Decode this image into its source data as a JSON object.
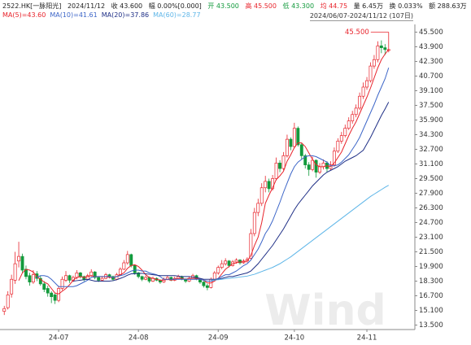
{
  "chart_data": {
    "type": "candlestick",
    "info": [
      "2522.HK[一脉阳光]",
      "2024/11/12",
      "收 43.600",
      "幅 0.00%[0.000]",
      "开 43.500",
      "高 45.500",
      "低 43.300",
      "均 44.75",
      "量 6.45万",
      "换 0.033%",
      "额 288.63万"
    ],
    "range_label": "2024/06/07-2024/11/12 (107日)",
    "annotation": "45.500",
    "watermark": "Wind",
    "up_color": "#e8242c",
    "down_color": "#129a3c",
    "categories": [
      null,
      null,
      null,
      null,
      null,
      null,
      null,
      null,
      null,
      null,
      null,
      null,
      null,
      null,
      null,
      "24-07",
      null,
      null,
      null,
      null,
      null,
      null,
      null,
      null,
      null,
      null,
      null,
      null,
      null,
      null,
      null,
      null,
      null,
      null,
      null,
      null,
      null,
      "24-08",
      null,
      null,
      null,
      null,
      null,
      null,
      null,
      null,
      null,
      null,
      null,
      null,
      null,
      null,
      null,
      null,
      null,
      null,
      null,
      null,
      null,
      "24-09",
      null,
      null,
      null,
      null,
      null,
      null,
      null,
      null,
      null,
      null,
      null,
      null,
      null,
      null,
      null,
      null,
      null,
      null,
      null,
      null,
      "24-10",
      null,
      null,
      null,
      null,
      null,
      null,
      null,
      null,
      null,
      null,
      null,
      null,
      null,
      null,
      null,
      null,
      null,
      null,
      null,
      "24-11",
      null,
      null,
      null,
      null,
      null,
      null
    ],
    "ohlc": [
      [
        15.0,
        15.6,
        14.6,
        15.3
      ],
      [
        15.4,
        17.2,
        15.2,
        16.8
      ],
      [
        16.9,
        19.0,
        16.5,
        18.5
      ],
      [
        18.4,
        21.5,
        18.0,
        20.2
      ],
      [
        20.5,
        22.6,
        19.8,
        21.0
      ],
      [
        21.0,
        21.3,
        19.2,
        19.5
      ],
      [
        19.6,
        20.0,
        18.5,
        18.8
      ],
      [
        18.9,
        19.2,
        17.8,
        18.2
      ],
      [
        18.2,
        19.5,
        18.0,
        19.0
      ],
      [
        19.1,
        19.4,
        18.3,
        18.6
      ],
      [
        18.6,
        18.9,
        17.8,
        18.0
      ],
      [
        18.0,
        18.3,
        17.1,
        17.4
      ],
      [
        17.5,
        17.8,
        16.6,
        17.0
      ],
      [
        17.0,
        17.2,
        15.9,
        16.6
      ],
      [
        16.8,
        17.0,
        15.8,
        16.2
      ],
      [
        16.2,
        17.8,
        16.0,
        17.5
      ],
      [
        17.5,
        18.8,
        17.3,
        18.5
      ],
      [
        18.4,
        19.4,
        18.2,
        18.9
      ],
      [
        18.9,
        19.0,
        18.1,
        18.4
      ],
      [
        18.4,
        18.9,
        18.2,
        18.7
      ],
      [
        18.7,
        19.5,
        18.5,
        19.2
      ],
      [
        19.2,
        19.3,
        18.6,
        18.8
      ],
      [
        18.8,
        18.9,
        18.3,
        18.5
      ],
      [
        18.5,
        19.1,
        18.4,
        18.9
      ],
      [
        18.9,
        19.6,
        18.8,
        19.3
      ],
      [
        19.3,
        19.4,
        18.5,
        18.7
      ],
      [
        18.7,
        18.8,
        18.2,
        18.4
      ],
      [
        18.4,
        18.8,
        18.3,
        18.6
      ],
      [
        18.6,
        19.2,
        18.5,
        19.0
      ],
      [
        19.0,
        19.1,
        18.6,
        18.8
      ],
      [
        18.8,
        18.9,
        18.3,
        18.5
      ],
      [
        18.5,
        19.2,
        18.4,
        19.0
      ],
      [
        19.0,
        19.8,
        18.9,
        19.6
      ],
      [
        19.6,
        20.6,
        19.5,
        20.3
      ],
      [
        20.3,
        21.6,
        20.1,
        21.2
      ],
      [
        21.2,
        21.3,
        19.8,
        20.0
      ],
      [
        20.0,
        20.1,
        19.0,
        19.2
      ],
      [
        19.2,
        19.3,
        18.6,
        18.8
      ],
      [
        18.8,
        18.9,
        18.3,
        18.5
      ],
      [
        18.5,
        18.9,
        18.4,
        18.7
      ],
      [
        18.7,
        18.8,
        18.1,
        18.3
      ],
      [
        18.3,
        18.8,
        18.2,
        18.6
      ],
      [
        18.6,
        18.7,
        18.3,
        18.4
      ],
      [
        18.4,
        18.5,
        18.0,
        18.2
      ],
      [
        18.2,
        18.7,
        18.1,
        18.5
      ],
      [
        18.5,
        18.9,
        18.4,
        18.7
      ],
      [
        18.7,
        18.8,
        18.3,
        18.4
      ],
      [
        18.4,
        18.8,
        18.3,
        18.6
      ],
      [
        18.6,
        19.0,
        18.5,
        18.8
      ],
      [
        18.8,
        18.9,
        18.4,
        18.5
      ],
      [
        18.5,
        18.6,
        18.1,
        18.3
      ],
      [
        18.3,
        18.8,
        18.2,
        18.6
      ],
      [
        18.6,
        19.1,
        18.5,
        18.9
      ],
      [
        18.9,
        19.0,
        18.4,
        18.5
      ],
      [
        18.5,
        18.6,
        18.0,
        18.2
      ],
      [
        18.2,
        18.3,
        17.6,
        17.8
      ],
      [
        17.8,
        18.0,
        17.3,
        17.6
      ],
      [
        17.6,
        18.7,
        17.5,
        18.5
      ],
      [
        18.5,
        19.4,
        18.4,
        19.2
      ],
      [
        19.2,
        20.0,
        19.0,
        19.8
      ],
      [
        19.8,
        20.6,
        19.6,
        20.2
      ],
      [
        20.2,
        20.8,
        20.0,
        20.5
      ],
      [
        20.5,
        20.6,
        19.8,
        20.0
      ],
      [
        20.0,
        20.6,
        19.9,
        20.4
      ],
      [
        20.4,
        20.8,
        20.2,
        20.6
      ],
      [
        20.6,
        20.7,
        20.1,
        20.3
      ],
      [
        20.3,
        20.7,
        20.2,
        20.5
      ],
      [
        20.5,
        20.9,
        20.3,
        20.7
      ],
      [
        20.8,
        24.0,
        20.7,
        23.5
      ],
      [
        23.5,
        26.3,
        23.2,
        25.8
      ],
      [
        25.8,
        27.3,
        25.4,
        26.8
      ],
      [
        26.8,
        29.0,
        26.5,
        28.5
      ],
      [
        28.5,
        29.8,
        28.0,
        29.2
      ],
      [
        29.2,
        29.5,
        28.0,
        28.4
      ],
      [
        28.4,
        29.9,
        28.2,
        29.5
      ],
      [
        29.5,
        31.8,
        29.3,
        31.2
      ],
      [
        31.2,
        31.5,
        30.2,
        30.6
      ],
      [
        30.6,
        32.4,
        30.4,
        32.0
      ],
      [
        32.0,
        34.3,
        31.8,
        33.8
      ],
      [
        33.8,
        34.0,
        32.6,
        33.0
      ],
      [
        33.0,
        35.6,
        32.8,
        35.0
      ],
      [
        35.0,
        35.2,
        33.0,
        33.2
      ],
      [
        33.2,
        33.4,
        31.6,
        32.0
      ],
      [
        32.0,
        32.2,
        30.6,
        31.0
      ],
      [
        31.0,
        31.3,
        29.8,
        30.5
      ],
      [
        30.5,
        31.9,
        30.3,
        31.5
      ],
      [
        31.5,
        31.6,
        29.6,
        30.2
      ],
      [
        30.2,
        31.2,
        30.0,
        30.8
      ],
      [
        30.8,
        31.6,
        30.5,
        31.2
      ],
      [
        31.2,
        31.4,
        30.2,
        30.6
      ],
      [
        30.6,
        31.4,
        30.4,
        31.0
      ],
      [
        31.0,
        32.9,
        30.8,
        32.5
      ],
      [
        32.5,
        33.9,
        32.3,
        33.6
      ],
      [
        33.6,
        34.6,
        33.3,
        34.2
      ],
      [
        34.2,
        35.4,
        34.0,
        35.0
      ],
      [
        35.0,
        36.2,
        34.8,
        35.8
      ],
      [
        35.8,
        36.9,
        35.5,
        36.5
      ],
      [
        36.5,
        37.6,
        36.2,
        37.2
      ],
      [
        37.2,
        38.9,
        37.0,
        38.5
      ],
      [
        38.5,
        40.0,
        38.2,
        39.5
      ],
      [
        39.5,
        40.6,
        39.2,
        40.2
      ],
      [
        40.2,
        42.2,
        40.0,
        41.8
      ],
      [
        41.8,
        43.0,
        41.5,
        42.5
      ],
      [
        42.5,
        44.5,
        42.2,
        44.0
      ],
      [
        44.0,
        44.6,
        43.2,
        43.8
      ],
      [
        43.8,
        44.2,
        43.0,
        43.6
      ],
      [
        43.5,
        45.5,
        43.3,
        43.6
      ]
    ],
    "series": [
      {
        "name": "MA(5)=43.60",
        "color": "#e8242c",
        "values": [
          null,
          null,
          null,
          null,
          18.36,
          19.2,
          19.6,
          19.5,
          19.3,
          18.8,
          18.5,
          18.2,
          18.0,
          17.5,
          17.0,
          16.9,
          17.2,
          17.5,
          17.9,
          18.4,
          18.7,
          18.8,
          18.7,
          18.8,
          18.9,
          18.8,
          18.8,
          18.8,
          18.8,
          18.7,
          18.7,
          18.8,
          19.0,
          19.2,
          19.7,
          20.0,
          20.1,
          19.9,
          19.5,
          19.0,
          18.7,
          18.6,
          18.5,
          18.4,
          18.4,
          18.5,
          18.4,
          18.5,
          18.6,
          18.6,
          18.5,
          18.6,
          18.6,
          18.6,
          18.5,
          18.4,
          18.1,
          18.1,
          18.3,
          18.6,
          19.1,
          19.6,
          19.9,
          20.2,
          20.3,
          20.4,
          20.4,
          20.5,
          21.1,
          22.2,
          23.1,
          24.7,
          26.8,
          27.7,
          28.5,
          29.4,
          29.8,
          30.3,
          31.4,
          32.1,
          32.9,
          33.4,
          33.4,
          33.0,
          32.3,
          31.6,
          31.0,
          30.8,
          30.8,
          30.9,
          30.8,
          31.2,
          31.8,
          32.4,
          33.3,
          34.2,
          35.0,
          35.7,
          36.6,
          37.5,
          38.4,
          39.4,
          40.5,
          41.6,
          42.5,
          43.1,
          43.6
        ]
      },
      {
        "name": "MA(10)=41.61",
        "color": "#3d66c8",
        "values": [
          null,
          null,
          null,
          null,
          null,
          null,
          null,
          null,
          null,
          18.7,
          18.9,
          18.9,
          18.8,
          18.5,
          18.1,
          17.7,
          17.7,
          17.7,
          17.7,
          17.7,
          17.8,
          18.0,
          18.2,
          18.4,
          18.7,
          18.8,
          18.8,
          18.8,
          18.8,
          18.8,
          18.7,
          18.8,
          18.9,
          19.0,
          19.2,
          19.4,
          19.5,
          19.5,
          19.4,
          19.4,
          19.2,
          19.1,
          19.0,
          18.8,
          18.5,
          18.5,
          18.5,
          18.5,
          18.5,
          18.5,
          18.5,
          18.5,
          18.5,
          18.5,
          18.5,
          18.4,
          18.3,
          18.3,
          18.4,
          18.6,
          18.8,
          19.0,
          19.0,
          19.2,
          19.4,
          19.7,
          20.0,
          20.2,
          20.6,
          21.2,
          21.8,
          22.6,
          23.5,
          24.1,
          24.9,
          25.9,
          26.9,
          28.0,
          29.0,
          30.0,
          30.8,
          31.3,
          31.6,
          31.9,
          32.0,
          32.0,
          31.9,
          31.7,
          31.5,
          31.3,
          30.9,
          30.9,
          31.0,
          31.3,
          31.7,
          32.1,
          32.7,
          33.3,
          34.0,
          34.9,
          35.8,
          36.7,
          37.6,
          38.6,
          39.5,
          40.4,
          41.61
        ]
      },
      {
        "name": "MA(20)=37.86",
        "color": "#1f2f86",
        "values": [
          null,
          null,
          null,
          null,
          null,
          null,
          null,
          null,
          null,
          null,
          null,
          null,
          null,
          null,
          null,
          null,
          null,
          null,
          null,
          18.3,
          18.35,
          18.4,
          18.45,
          18.5,
          18.4,
          18.3,
          18.3,
          18.3,
          18.3,
          18.3,
          18.35,
          18.45,
          18.6,
          18.75,
          18.95,
          19.1,
          19.1,
          19.15,
          19.15,
          19.1,
          19.05,
          19.0,
          18.95,
          18.9,
          18.9,
          18.9,
          18.9,
          18.9,
          18.85,
          18.8,
          18.8,
          18.8,
          18.75,
          18.7,
          18.6,
          18.5,
          18.5,
          18.5,
          18.5,
          18.5,
          18.6,
          18.7,
          18.8,
          18.8,
          18.9,
          19.0,
          19.1,
          19.2,
          19.4,
          19.8,
          20.2,
          20.7,
          21.2,
          21.7,
          22.2,
          22.8,
          23.4,
          24.0,
          24.7,
          25.4,
          26.1,
          26.7,
          27.2,
          27.7,
          28.2,
          28.7,
          29.1,
          29.5,
          29.9,
          30.2,
          30.4,
          30.6,
          30.8,
          31.1,
          31.4,
          31.6,
          31.8,
          32.0,
          32.3,
          32.6,
          33.3,
          34.0,
          34.8,
          35.6,
          36.4,
          37.1,
          37.86
        ]
      },
      {
        "name": "MA(60)=28.77",
        "color": "#5fb6e8",
        "values": [
          null,
          null,
          null,
          null,
          null,
          null,
          null,
          null,
          null,
          null,
          null,
          null,
          null,
          null,
          null,
          null,
          null,
          null,
          null,
          null,
          null,
          null,
          null,
          null,
          null,
          null,
          null,
          null,
          null,
          null,
          null,
          null,
          null,
          null,
          null,
          null,
          null,
          null,
          null,
          null,
          null,
          null,
          null,
          null,
          null,
          null,
          null,
          null,
          null,
          null,
          null,
          null,
          null,
          null,
          null,
          null,
          null,
          18.4,
          18.42,
          18.45,
          18.5,
          18.55,
          18.6,
          18.65,
          18.7,
          18.75,
          18.8,
          18.85,
          18.95,
          19.05,
          19.2,
          19.35,
          19.5,
          19.65,
          19.8,
          20.0,
          20.2,
          20.45,
          20.7,
          20.95,
          21.25,
          21.55,
          21.85,
          22.15,
          22.45,
          22.75,
          23.05,
          23.35,
          23.65,
          23.95,
          24.25,
          24.55,
          24.85,
          25.15,
          25.45,
          25.75,
          26.05,
          26.35,
          26.65,
          26.95,
          27.25,
          27.55,
          27.8,
          28.05,
          28.3,
          28.55,
          28.77
        ]
      }
    ],
    "ylim": [
      13.1,
      45.9
    ],
    "yticks": [
      {
        "value": 45.5,
        "label": "45.500"
      },
      {
        "value": 43.9,
        "label": "43.900"
      },
      {
        "value": 42.3,
        "label": "42.300"
      },
      {
        "value": 40.7,
        "label": "40.700"
      },
      {
        "value": 39.1,
        "label": "39.100"
      },
      {
        "value": 37.5,
        "label": "37.500"
      },
      {
        "value": 35.9,
        "label": "35.900"
      },
      {
        "value": 34.3,
        "label": "34.300"
      },
      {
        "value": 32.7,
        "label": "32.700"
      },
      {
        "value": 31.1,
        "label": "31.100"
      },
      {
        "value": 29.5,
        "label": "29.500"
      },
      {
        "value": 27.9,
        "label": "27.900"
      },
      {
        "value": 26.3,
        "label": "26.300"
      },
      {
        "value": 24.7,
        "label": "24.700"
      },
      {
        "value": 23.1,
        "label": "23.100"
      },
      {
        "value": 21.5,
        "label": "21.500"
      },
      {
        "value": 19.9,
        "label": "19.900"
      },
      {
        "value": 18.3,
        "label": "18.300"
      },
      {
        "value": 16.7,
        "label": "16.700"
      },
      {
        "value": 15.1,
        "label": "15.100"
      },
      {
        "value": 13.5,
        "label": "13.500"
      }
    ]
  }
}
